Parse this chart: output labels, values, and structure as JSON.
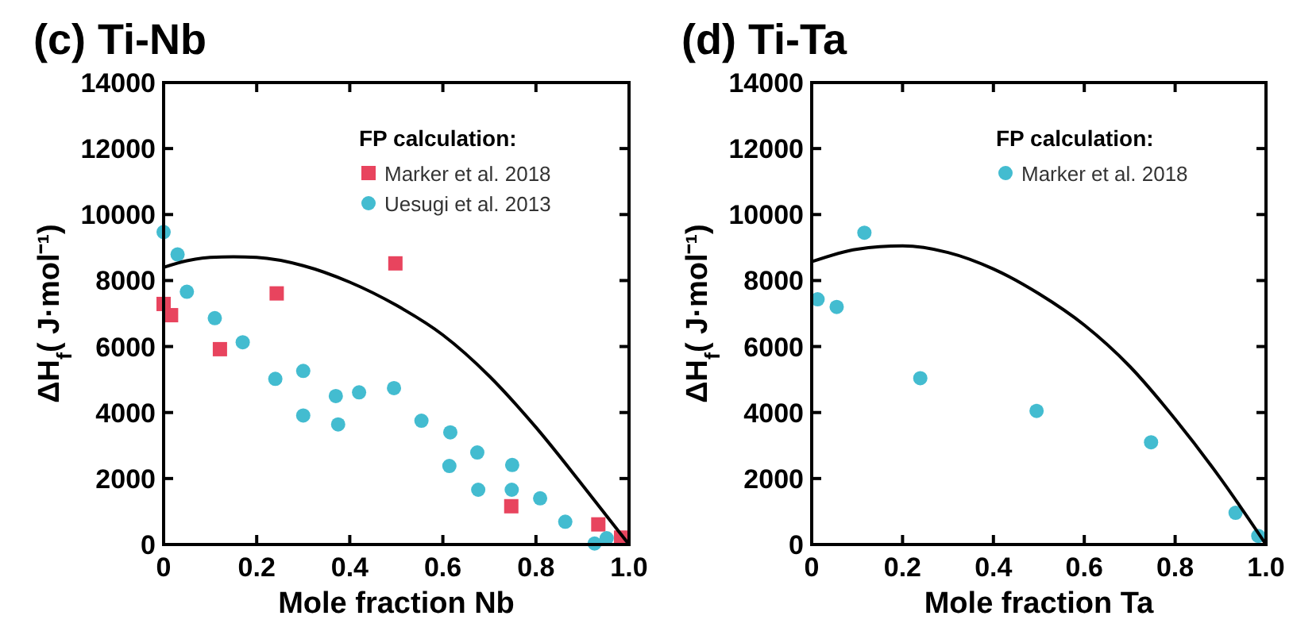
{
  "chart_data": [
    {
      "type": "scatter",
      "title": "(c) Ti-Nb",
      "xlabel": "Mole fraction Nb",
      "ylabel": "ΔH$_{f}$( J·mol⁻¹)",
      "legend_title": "FP calculation:",
      "legend": "top right",
      "xlim": [
        0,
        1
      ],
      "ylim": [
        0,
        14000
      ],
      "xticks": [
        0,
        0.2,
        0.4,
        0.6,
        0.8,
        {
          "value": 1,
          "label": "1.0"
        }
      ],
      "yticks": [
        0,
        2000,
        4000,
        6000,
        8000,
        10000,
        12000,
        14000
      ],
      "series": [
        {
          "name": "Marker et al. 2018",
          "color": "#e8445e",
          "marker": "square",
          "x": [
            0,
            0.016,
            0.121,
            0.243,
            0.498,
            0.747,
            0.934,
            0.983
          ],
          "values": [
            7290,
            6950,
            5920,
            7610,
            8520,
            1160,
            610,
            210
          ]
        },
        {
          "name": "Uesugi et al. 2013",
          "color": "#43bcd0",
          "marker": "circle",
          "x": [
            0,
            0.03,
            0.05,
            0.11,
            0.17,
            0.24,
            0.3,
            0.3,
            0.37,
            0.375,
            0.42,
            0.495,
            0.554,
            0.616,
            0.614,
            0.674,
            0.676,
            0.749,
            0.748,
            0.809,
            0.863,
            0.926,
            0.952
          ],
          "values": [
            9470,
            8790,
            7660,
            6860,
            6130,
            5020,
            5260,
            3910,
            4500,
            3640,
            4610,
            4740,
            3750,
            3400,
            2380,
            2790,
            1660,
            2410,
            1660,
            1400,
            690,
            30,
            190
          ]
        },
        {
          "type": "line",
          "color": "#000000",
          "marker": "none",
          "x": [
            0,
            0.05,
            0.1,
            0.15,
            0.2,
            0.3,
            0.4,
            0.5,
            0.6,
            0.7,
            0.8,
            0.9,
            1.0
          ],
          "values": [
            8400,
            8600,
            8700,
            8720,
            8700,
            8450,
            7950,
            7250,
            6350,
            5100,
            3550,
            1800,
            0
          ]
        }
      ]
    },
    {
      "type": "scatter",
      "title": "(d) Ti-Ta",
      "xlabel": "Mole fraction Ta",
      "ylabel": "ΔH$_{f}$( J·mol⁻¹)",
      "legend_title": "FP calculation:",
      "legend": "top right",
      "xlim": [
        0,
        1
      ],
      "ylim": [
        0,
        14000
      ],
      "xticks": [
        0,
        0.2,
        0.4,
        0.6,
        0.8,
        {
          "value": 1,
          "label": "1.0"
        }
      ],
      "yticks": [
        0,
        2000,
        4000,
        6000,
        8000,
        10000,
        12000,
        14000
      ],
      "series": [
        {
          "name": "Marker et al. 2018",
          "color": "#43bcd0",
          "marker": "circle",
          "x": [
            0.013,
            0.055,
            0.116,
            0.239,
            0.495,
            0.747,
            0.933,
            0.983
          ],
          "values": [
            7430,
            7200,
            9450,
            5040,
            4050,
            3100,
            960,
            260
          ]
        },
        {
          "type": "line",
          "color": "#000000",
          "marker": "none",
          "x": [
            0,
            0.1,
            0.2,
            0.3,
            0.4,
            0.5,
            0.6,
            0.7,
            0.8,
            0.9,
            1.0
          ],
          "values": [
            8570,
            8950,
            9050,
            8850,
            8350,
            7600,
            6650,
            5400,
            3800,
            2000,
            0
          ]
        }
      ]
    }
  ]
}
